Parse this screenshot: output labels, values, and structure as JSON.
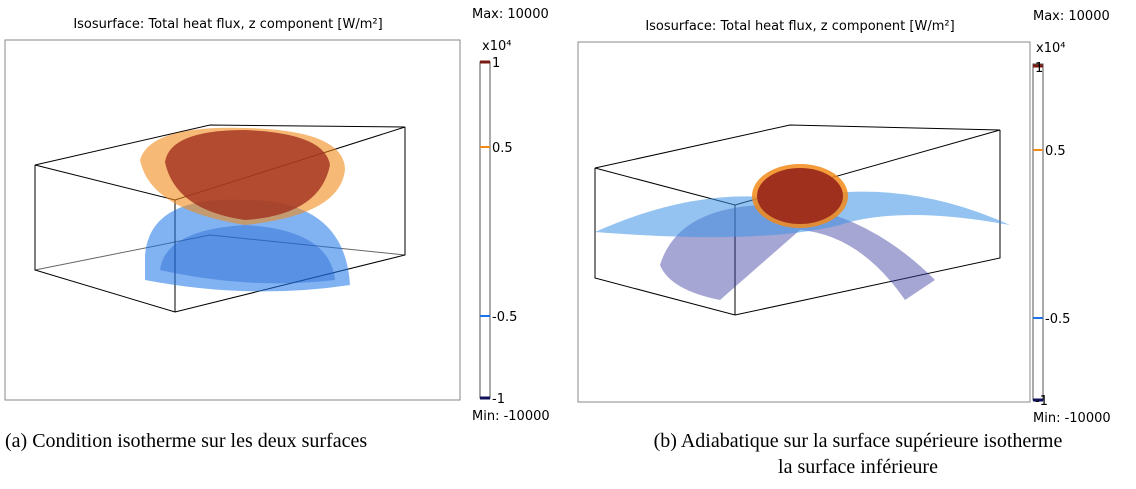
{
  "panels": [
    {
      "title": "Isosurface: Total heat flux, z component [W/m²]",
      "max": "Max: 10000",
      "min": "Min: -10000",
      "exponent": "x10⁴",
      "ticks": [
        "1",
        "0.5",
        "-0.5",
        "-1"
      ],
      "caption": [
        "(a) Condition isotherme sur les deux surfaces"
      ]
    },
    {
      "title": "Isosurface: Total heat flux, z component [W/m²]",
      "max": "Max: 10000",
      "min": "Min: -10000",
      "exponent": "x10⁴",
      "ticks": [
        "1",
        "0.5",
        "-0.5",
        "-1"
      ],
      "caption": [
        "(b) Adiabatique sur la surface supérieure isotherme",
        "la surface inférieure"
      ]
    }
  ]
}
